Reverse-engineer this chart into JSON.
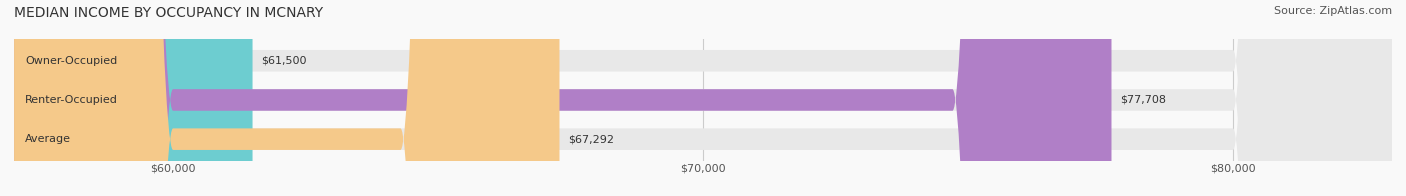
{
  "title": "MEDIAN INCOME BY OCCUPANCY IN MCNARY",
  "source": "Source: ZipAtlas.com",
  "categories": [
    "Owner-Occupied",
    "Renter-Occupied",
    "Average"
  ],
  "values": [
    61500,
    77708,
    67292
  ],
  "labels": [
    "$61,500",
    "$77,708",
    "$67,292"
  ],
  "bar_colors": [
    "#6dcdd0",
    "#b07fc7",
    "#f5c98a"
  ],
  "xmin": 57000,
  "xmax": 83000,
  "xticks": [
    60000,
    70000,
    80000
  ],
  "xtick_labels": [
    "$60,000",
    "$70,000",
    "$80,000"
  ],
  "title_fontsize": 10,
  "source_fontsize": 8,
  "label_fontsize": 8,
  "bar_label_fontsize": 8,
  "bar_height": 0.55,
  "bg_color": "#f9f9f9"
}
